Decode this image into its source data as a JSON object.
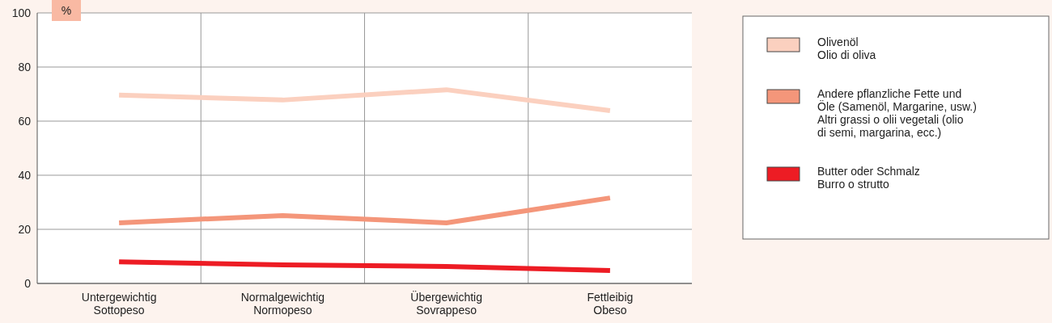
{
  "chart_data": {
    "type": "line",
    "ylabel": "%",
    "categories": [
      "Untergewichtig\nSottopeso",
      "Normalgewichtig\nNormopeso",
      "Übergewichtig\nSovrappeso",
      "Fettleibig\nObeso"
    ],
    "series": [
      {
        "name": "Olivenöl\nOlio di oliva",
        "color": "#fbd0bf",
        "values": [
          69.6,
          67.8,
          71.6,
          63.9
        ]
      },
      {
        "name": "Andere pflanzliche Fette und\nÖle (Samenöl, Margarine, usw.)\nAltri grassi o olii vegetali (olio\ndi semi, margarina, ecc.)",
        "color": "#f4967a",
        "values": [
          22.4,
          25.1,
          22.4,
          31.6
        ]
      },
      {
        "name": "Butter oder Schmalz\nBurro o strutto",
        "color": "#ed1c24",
        "values": [
          8,
          6.9,
          6.3,
          4.8
        ]
      }
    ],
    "ylim": [
      0,
      100
    ],
    "yticks": [
      0,
      20,
      40,
      60,
      80,
      100
    ],
    "grid": true,
    "legend": "right",
    "line_style": "solid",
    "marker": "none"
  }
}
